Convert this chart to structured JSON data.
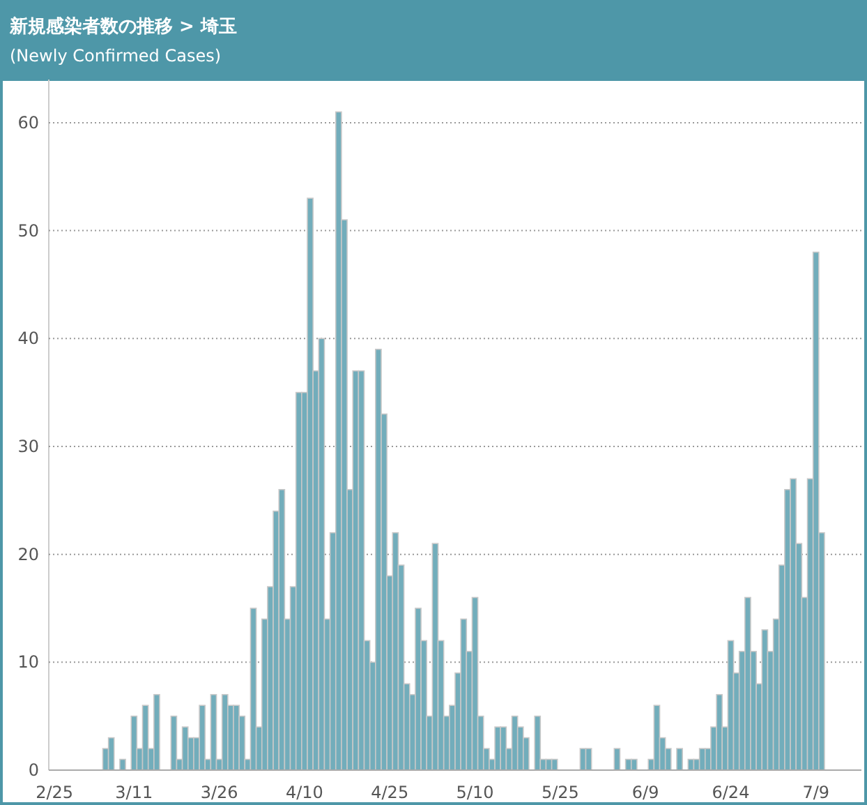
{
  "chart_data": {
    "type": "bar",
    "title": "新規感染者数の推移 > 埼玉",
    "subtitle": "(Newly Confirmed Cases)",
    "x": [
      "--03-06",
      "--03-07",
      "--03-09",
      "--03-11",
      "--03-12",
      "--03-13",
      "--03-14",
      "--03-15",
      "--03-18",
      "--03-19",
      "--03-20",
      "--03-21",
      "--03-22",
      "--03-23",
      "--03-24",
      "--03-25",
      "--03-26",
      "--03-27",
      "--03-28",
      "--03-29",
      "--03-30",
      "--03-31",
      "--04-01",
      "--04-02",
      "--04-03",
      "--04-04",
      "--04-05",
      "--04-06",
      "--04-07",
      "--04-08",
      "--04-09",
      "--04-10",
      "--04-11",
      "--04-12",
      "--04-13",
      "--04-14",
      "--04-15",
      "--04-16",
      "--04-17",
      "--04-18",
      "--04-19",
      "--04-20",
      "--04-21",
      "--04-22",
      "--04-23",
      "--04-24",
      "--04-25",
      "--04-26",
      "--04-27",
      "--04-28",
      "--04-29",
      "--04-30",
      "--05-01",
      "--05-02",
      "--05-03",
      "--05-04",
      "--05-05",
      "--05-06",
      "--05-07",
      "--05-08",
      "--05-09",
      "--05-10",
      "--05-11",
      "--05-12",
      "--05-13",
      "--05-14",
      "--05-15",
      "--05-16",
      "--05-17",
      "--05-18",
      "--05-19",
      "--05-21",
      "--05-22",
      "--05-23",
      "--05-24",
      "--05-29",
      "--05-30",
      "--06-04",
      "--06-06",
      "--06-07",
      "--06-10",
      "--06-11",
      "--06-12",
      "--06-13",
      "--06-15",
      "--06-17",
      "--06-18",
      "--06-19",
      "--06-20",
      "--06-21",
      "--06-22",
      "--06-23",
      "--06-24",
      "--06-25",
      "--06-26",
      "--06-27",
      "--06-28",
      "--06-29",
      "--06-30",
      "--07-01",
      "--07-02",
      "--07-03",
      "--07-04",
      "--07-05",
      "--07-06",
      "--07-07",
      "--07-08",
      "--07-09",
      "--07-10"
    ],
    "values": [
      2,
      3,
      1,
      5,
      2,
      6,
      2,
      7,
      5,
      1,
      4,
      3,
      3,
      6,
      1,
      7,
      1,
      7,
      6,
      6,
      5,
      1,
      15,
      4,
      14,
      17,
      24,
      26,
      14,
      17,
      35,
      35,
      53,
      37,
      40,
      14,
      22,
      61,
      51,
      26,
      37,
      37,
      12,
      10,
      39,
      33,
      18,
      22,
      19,
      8,
      7,
      15,
      12,
      5,
      21,
      12,
      5,
      6,
      9,
      14,
      11,
      16,
      5,
      2,
      1,
      4,
      4,
      2,
      5,
      4,
      3,
      5,
      1,
      1,
      1,
      2,
      2,
      2,
      1,
      1,
      1,
      6,
      3,
      2,
      2,
      1,
      1,
      2,
      2,
      4,
      7,
      4,
      12,
      9,
      11,
      16,
      11,
      8,
      13,
      11,
      14,
      19,
      26,
      27,
      21,
      16,
      27,
      48,
      22
    ],
    "color": "#72adbb",
    "xlim": [
      "--02-24",
      "--07-17"
    ],
    "xticks": [
      {
        "value": "--02-25",
        "label": "2/25"
      },
      {
        "value": "--03-11",
        "label": "3/11"
      },
      {
        "value": "--03-26",
        "label": "3/26"
      },
      {
        "value": "--04-10",
        "label": "4/10"
      },
      {
        "value": "--04-25",
        "label": "4/25"
      },
      {
        "value": "--05-10",
        "label": "5/10"
      },
      {
        "value": "--05-25",
        "label": "5/25"
      },
      {
        "value": "--06-09",
        "label": "6/9"
      },
      {
        "value": "--06-24",
        "label": "6/24"
      },
      {
        "value": "--07-09",
        "label": "7/9"
      }
    ],
    "ylim": [
      0,
      64
    ],
    "yticks": [
      0,
      10,
      20,
      30,
      40,
      50,
      60
    ],
    "grid": "y"
  }
}
